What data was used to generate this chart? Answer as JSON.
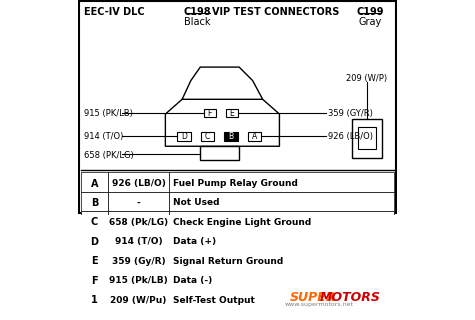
{
  "title_left": "EEC-IV DLC",
  "connector_c198": "C198",
  "connector_c198_label": "Black",
  "vip_label": "VIP TEST CONNECTORS",
  "connector_c199": "C199",
  "connector_c199_label": "Gray",
  "wire_labels_left": [
    "915 (PK/LB)",
    "914 (T/O)",
    "658 (PK/LG)"
  ],
  "wire_labels_right": [
    "359 (GY/R)",
    "926 (LB/O)"
  ],
  "wire_label_c199": "209 (W/P)",
  "table_rows": [
    [
      "A",
      "926 (LB/O)",
      "Fuel Pump Relay Ground"
    ],
    [
      "B",
      "-",
      "Not Used"
    ],
    [
      "C",
      "658 (Pk/LG)",
      "Check Engine Light Ground"
    ],
    [
      "D",
      "914 (T/O)",
      "Data (+)"
    ],
    [
      "E",
      "359 (Gy/R)",
      "Signal Return Ground"
    ],
    [
      "F",
      "915 (Pk/LB)",
      "Data (-)"
    ],
    [
      "1",
      "209 (W/Pu)",
      "Self-Test Output"
    ]
  ],
  "bg_color": "#ffffff",
  "text_color": "#000000",
  "border_color": "#000000",
  "watermark": "www.supermotors.net",
  "super_color": "#ff6600",
  "motors_color": "#cc0000"
}
